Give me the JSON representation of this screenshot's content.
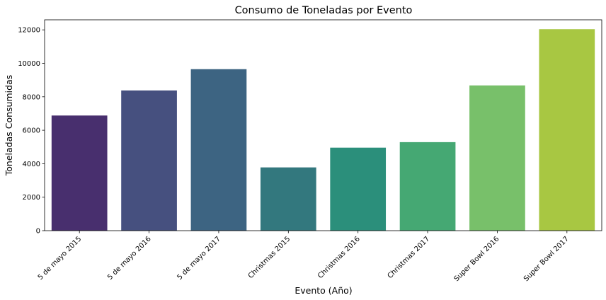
{
  "chart_data": {
    "type": "bar",
    "title": "Consumo de Toneladas por Evento",
    "xlabel": "Evento (Año)",
    "ylabel": "Toneladas Consumidas",
    "categories": [
      "5 de mayo 2015",
      "5 de mayo 2016",
      "5 de mayo 2017",
      "Christmas 2015",
      "Christmas 2016",
      "Christmas 2017",
      "Super Bowl 2016",
      "Super Bowl 2017"
    ],
    "values": [
      6880,
      8380,
      9650,
      3780,
      4960,
      5290,
      8680,
      12040
    ],
    "colors": [
      "#482f6e",
      "#46507f",
      "#3d6482",
      "#33787e",
      "#2b8f7b",
      "#45a873",
      "#78c06a",
      "#a8c742"
    ],
    "ylim": [
      0,
      12600
    ],
    "yticks": [
      0,
      2000,
      4000,
      6000,
      8000,
      10000,
      12000
    ],
    "grid": false,
    "legend": "none"
  }
}
